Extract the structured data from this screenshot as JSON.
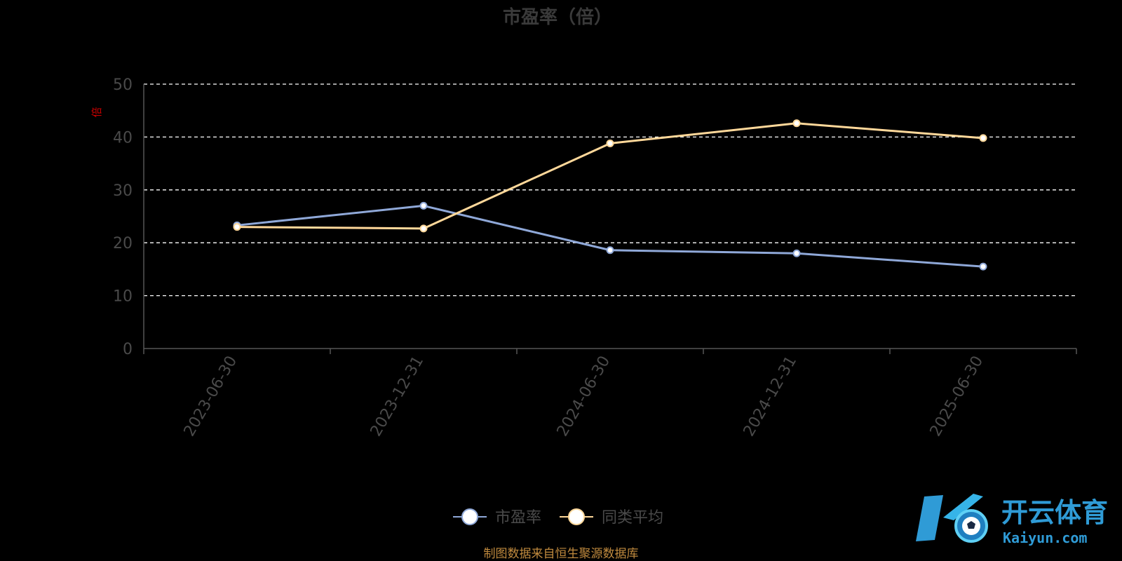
{
  "chart_data": {
    "type": "line",
    "title": "市盈率（倍）",
    "ylabel": "",
    "unit": "倍",
    "xlabel": "",
    "categories": [
      "2023-06-30",
      "2023-12-31",
      "2024-06-30",
      "2024-12-31",
      "2025-06-30"
    ],
    "yticks": [
      "0",
      "10",
      "20",
      "30",
      "40",
      "50"
    ],
    "ylim": [
      0,
      50
    ],
    "grid": true,
    "grid_style": "dashed",
    "legend_position": "bottom-center",
    "series": [
      {
        "name": "市盈率",
        "values": [
          23.3,
          27.0,
          18.6,
          18.0,
          15.5
        ],
        "color": "#8fa8d8"
      },
      {
        "name": "同类平均",
        "values": [
          23.0,
          22.7,
          38.8,
          42.6,
          39.8
        ],
        "color": "#ffd89a"
      }
    ]
  },
  "source_note": "制图数据来自恒生聚源数据库",
  "watermark": {
    "cn": "开云体育",
    "en": "Kaiyun.com"
  },
  "colors": {
    "background": "#000000",
    "grid": "#ffffff",
    "axis": "#555555",
    "text": "#4a4a4a"
  }
}
